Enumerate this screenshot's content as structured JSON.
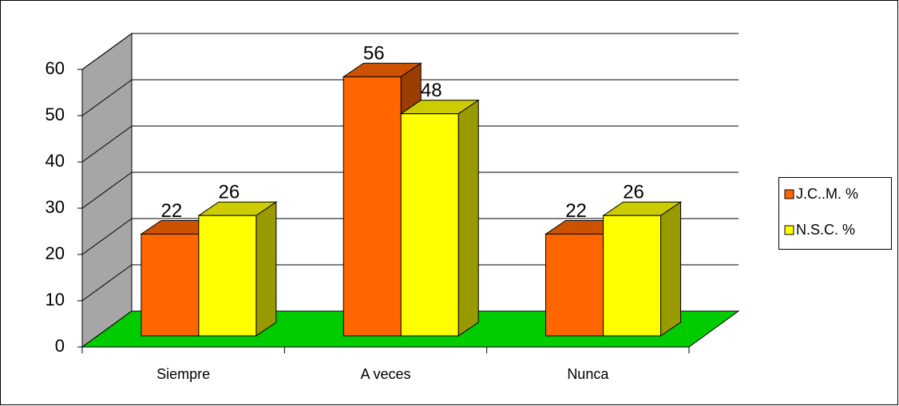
{
  "chart_data": {
    "type": "bar3d",
    "categories": [
      "Siempre",
      "A veces",
      "Nunca"
    ],
    "series": [
      {
        "name": "J.C..M. %",
        "color": "#FF6600",
        "values": [
          22,
          56,
          22
        ]
      },
      {
        "name": "N.S.C. %",
        "color": "#FFFF00",
        "values": [
          26,
          48,
          26
        ]
      }
    ],
    "ylim": [
      0,
      60
    ],
    "yticks": [
      0,
      10,
      20,
      30,
      40,
      50,
      60
    ],
    "grid": true,
    "legend": "right"
  }
}
